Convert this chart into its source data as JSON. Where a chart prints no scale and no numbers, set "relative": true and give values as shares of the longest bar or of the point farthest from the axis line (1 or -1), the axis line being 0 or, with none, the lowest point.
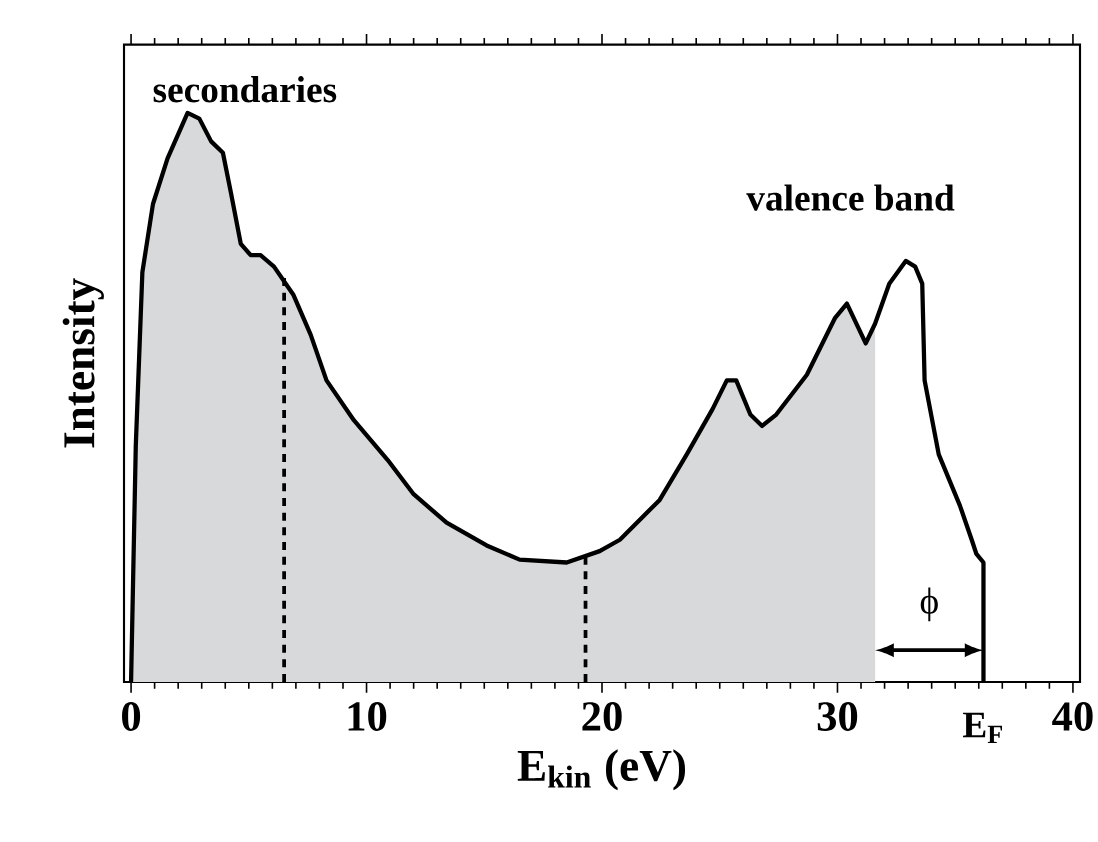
{
  "chart_data": {
    "type": "line",
    "xlabel": "E$_{kin}$ (eV)",
    "ylabel": "Intensity",
    "relative": true,
    "xlim": [
      -0.3,
      40.3
    ],
    "xticks": [
      0,
      10,
      20,
      30,
      40
    ],
    "grid": false,
    "annotations": [
      "secondaries",
      "valence band",
      "ϕ",
      {
        "text": "E$_{F}$",
        "x": 36.2,
        "y": 0
      }
    ],
    "series": [
      {
        "type": "area",
        "color": "#d8d9da",
        "x": [
          0,
          0.2,
          0.48,
          0.93,
          1.55,
          2.4,
          2.9,
          3.4,
          3.9,
          4.24,
          4.66,
          5.08,
          5.5,
          6.07,
          6.9,
          7.63,
          8.3,
          9.46,
          10.9,
          12.0,
          13.4,
          15.1,
          16.5,
          18.5,
          19.9,
          20.76,
          22.45,
          23.6,
          24.7,
          25.3,
          25.7,
          26.3,
          26.8,
          27.4,
          28.7,
          29.9,
          30.4,
          31.2,
          31.6
        ],
        "values": [
          0,
          0.415,
          0.72,
          0.84,
          0.92,
          1,
          0.99,
          0.95,
          0.93,
          0.86,
          0.77,
          0.75,
          0.75,
          0.73,
          0.68,
          0.61,
          0.53,
          0.46,
          0.39,
          0.33,
          0.28,
          0.24,
          0.215,
          0.21,
          0.23,
          0.25,
          0.32,
          0.4,
          0.48,
          0.53,
          0.53,
          0.47,
          0.45,
          0.47,
          0.54,
          0.64,
          0.665,
          0.595,
          0.63
        ]
      },
      {
        "color": "#000000",
        "line_style": "solid",
        "x": [
          0,
          0.2,
          0.48,
          0.93,
          1.55,
          2.4,
          2.9,
          3.4,
          3.9,
          4.24,
          4.66,
          5.08,
          5.5,
          6.07,
          6.9,
          7.63,
          8.3,
          9.46,
          10.9,
          12.0,
          13.4,
          15.1,
          16.5,
          18.5,
          19.9,
          20.76,
          22.45,
          23.6,
          24.7,
          25.3,
          25.7,
          26.3,
          26.8,
          27.4,
          28.7,
          29.9,
          30.4,
          31.2,
          31.6,
          32.2,
          32.9,
          33.3,
          33.6,
          33.7,
          34.3,
          35.2,
          35.7,
          35.9,
          36.2,
          36.2
        ],
        "values": [
          0,
          0.415,
          0.72,
          0.84,
          0.92,
          1,
          0.99,
          0.95,
          0.93,
          0.86,
          0.77,
          0.75,
          0.75,
          0.73,
          0.68,
          0.61,
          0.53,
          0.46,
          0.39,
          0.33,
          0.28,
          0.24,
          0.215,
          0.21,
          0.23,
          0.25,
          0.32,
          0.4,
          0.48,
          0.53,
          0.53,
          0.47,
          0.45,
          0.47,
          0.54,
          0.64,
          0.665,
          0.595,
          0.63,
          0.7,
          0.74,
          0.73,
          0.7,
          0.53,
          0.4,
          0.31,
          0.25,
          0.225,
          0.21,
          0
        ]
      },
      {
        "color": "#000000",
        "line_style": "dashed",
        "x": [
          6.5,
          6.5
        ],
        "values": [
          0,
          0.71
        ]
      },
      {
        "color": "#000000",
        "line_style": "dashed",
        "x": [
          19.3,
          19.3
        ],
        "values": [
          0,
          0.22
        ]
      }
    ]
  }
}
